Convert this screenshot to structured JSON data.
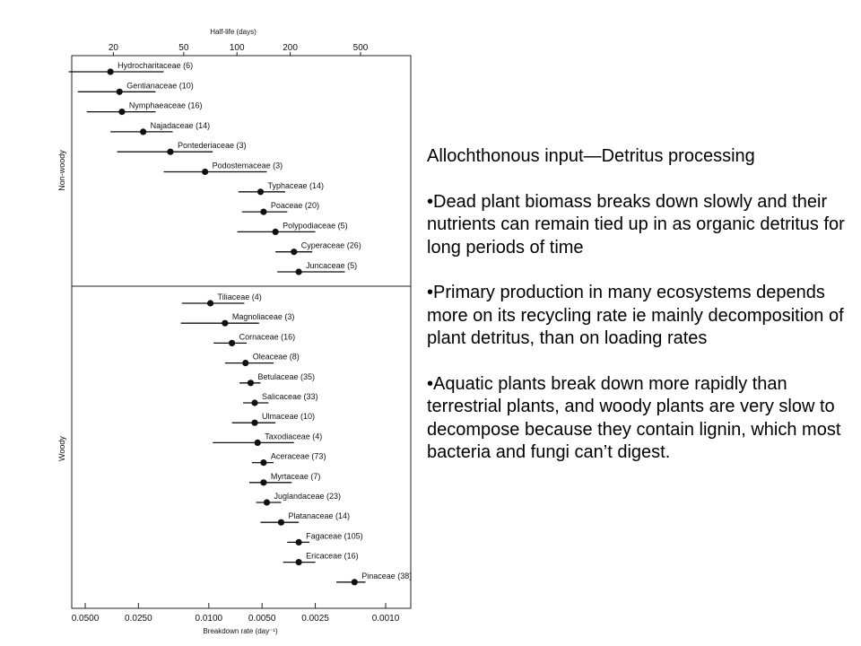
{
  "slide": {
    "heading": "Allochthonous input—Detritus processing",
    "bullets": [
      "•Dead plant biomass breaks down slowly and their nutrients can remain tied up in as organic detritus for long periods of time",
      "•Primary production in many ecosystems depends more on its recycling rate ie mainly decomposition of plant detritus, than on loading rates",
      "•Aquatic plants break down more rapidly than terrestrial plants, and woody plants are very slow to decompose because they contain lignin, which most bacteria and fungi can’t digest."
    ]
  },
  "chart_data": {
    "type": "scatter",
    "subtype": "dot-with-range",
    "scale": "log",
    "xlabel": "Breakdown rate (day⁻¹)",
    "x_ticks": [
      "0.0500",
      "0.0250",
      "0.0100",
      "0.0050",
      "0.0025",
      "0.0010"
    ],
    "x_top_label": "Half-life (days)",
    "x_top_ticks": [
      "20",
      "50",
      "100",
      "200",
      "500"
    ],
    "groups": [
      {
        "name": "Non-woody",
        "rows": [
          {
            "label": "Hydrocharitaceae (6)",
            "value": 0.036,
            "low": 0.018,
            "high": 0.062
          },
          {
            "label": "Gentianaceae (10)",
            "value": 0.032,
            "low": 0.02,
            "high": 0.055
          },
          {
            "label": "Nymphaeaceae (16)",
            "value": 0.031,
            "low": 0.02,
            "high": 0.049
          },
          {
            "label": "Najadaceae (14)",
            "value": 0.0235,
            "low": 0.016,
            "high": 0.036
          },
          {
            "label": "Pontederiaceae (3)",
            "value": 0.0165,
            "low": 0.0095,
            "high": 0.033
          },
          {
            "label": "Podostemaceae (3)",
            "value": 0.0105,
            "low": 0.0047,
            "high": 0.018
          },
          {
            "label": "Typhaceae (14)",
            "value": 0.0051,
            "low": 0.0037,
            "high": 0.0068
          },
          {
            "label": "Poaceae (20)",
            "value": 0.0049,
            "low": 0.0036,
            "high": 0.0065
          },
          {
            "label": "Polypodiaceae (5)",
            "value": 0.0042,
            "low": 0.0025,
            "high": 0.0069
          },
          {
            "label": "Cyperaceae (26)",
            "value": 0.0033,
            "low": 0.0026,
            "high": 0.0042
          },
          {
            "label": "Juncaceae (5)",
            "value": 0.0031,
            "low": 0.0017,
            "high": 0.0041
          }
        ]
      },
      {
        "name": "Woody",
        "rows": [
          {
            "label": "Tiliaceae (4)",
            "value": 0.0098,
            "low": 0.0063,
            "high": 0.0142
          },
          {
            "label": "Magnoliaceae (3)",
            "value": 0.0081,
            "low": 0.0052,
            "high": 0.0144
          },
          {
            "label": "Cornaceae (16)",
            "value": 0.0074,
            "low": 0.0061,
            "high": 0.0094
          },
          {
            "label": "Oleaceae (8)",
            "value": 0.0062,
            "low": 0.0043,
            "high": 0.0081
          },
          {
            "label": "Betulaceae (35)",
            "value": 0.0058,
            "low": 0.0051,
            "high": 0.0067
          },
          {
            "label": "Salicaceae (33)",
            "value": 0.0055,
            "low": 0.0046,
            "high": 0.0064
          },
          {
            "label": "Ulmaceae (10)",
            "value": 0.0055,
            "low": 0.0042,
            "high": 0.0074
          },
          {
            "label": "Taxodiaceae (4)",
            "value": 0.0053,
            "low": 0.0033,
            "high": 0.0095
          },
          {
            "label": "Aceraceae (73)",
            "value": 0.0049,
            "low": 0.0043,
            "high": 0.0057
          },
          {
            "label": "Myrtaceae (7)",
            "value": 0.0049,
            "low": 0.0034,
            "high": 0.0059
          },
          {
            "label": "Juglandaceae (23)",
            "value": 0.0047,
            "low": 0.0039,
            "high": 0.0054
          },
          {
            "label": "Platanaceae (14)",
            "value": 0.0039,
            "low": 0.0031,
            "high": 0.0051
          },
          {
            "label": "Fagaceae (105)",
            "value": 0.0031,
            "low": 0.0027,
            "high": 0.0036
          },
          {
            "label": "Ericaceae (16)",
            "value": 0.0031,
            "low": 0.0025,
            "high": 0.0038
          },
          {
            "label": "Pinaceae (38)",
            "value": 0.0015,
            "low": 0.0013,
            "high": 0.0019
          }
        ]
      }
    ]
  }
}
